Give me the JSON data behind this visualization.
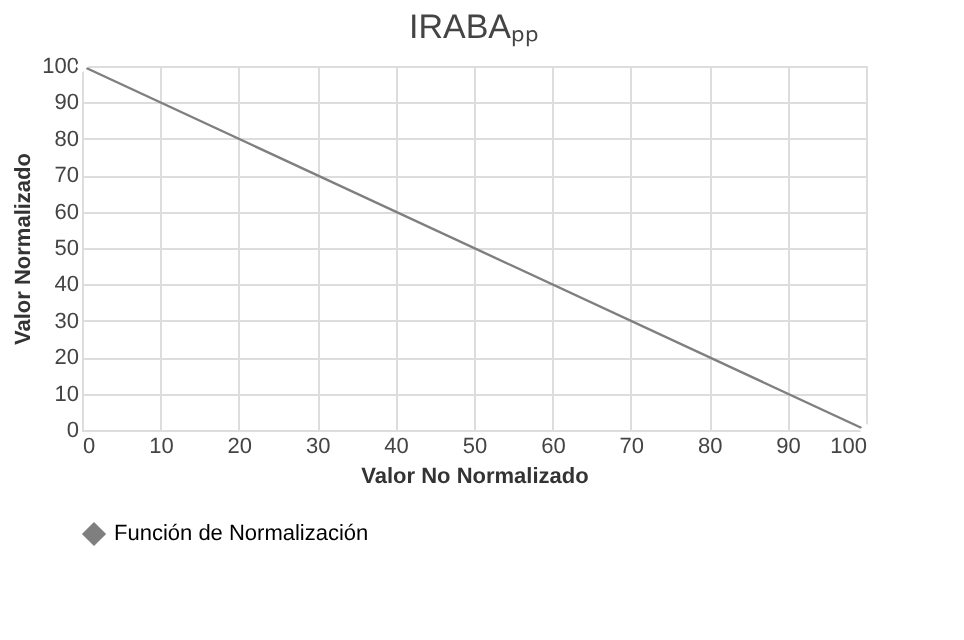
{
  "chart_data": {
    "type": "line",
    "title": "IRABAₚₚ",
    "xlabel": "Valor No Normalizado",
    "ylabel": "Valor Normalizado",
    "x": [
      0,
      100
    ],
    "series": [
      {
        "name": "Función de Normalización",
        "color": "#7f7f7f",
        "values": [
          100,
          0
        ]
      }
    ],
    "xlim": [
      0,
      100
    ],
    "xticks": [
      0,
      10,
      20,
      30,
      40,
      50,
      60,
      70,
      80,
      90,
      100
    ],
    "ylim": [
      0,
      100
    ],
    "yticks": [
      0,
      10,
      20,
      30,
      40,
      50,
      60,
      70,
      80,
      90,
      100
    ],
    "grid": true,
    "legend": "bottom",
    "marker": "diamond",
    "line_style": "solid"
  }
}
